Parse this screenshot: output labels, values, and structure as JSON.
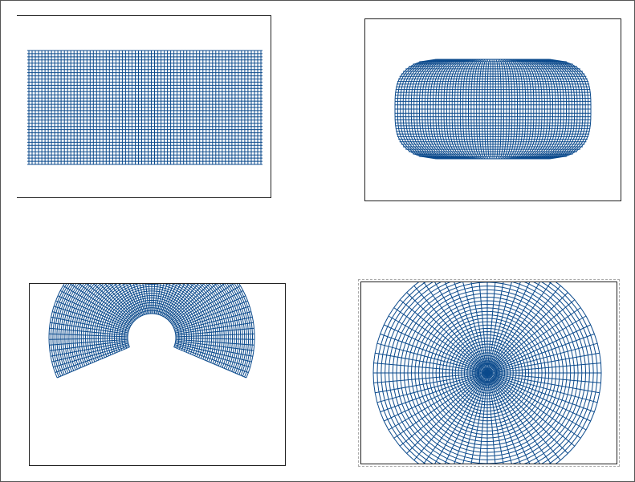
{
  "colors": {
    "grid": "#0b4a8c",
    "frame": "#222222",
    "selection": "#a9a9a9"
  },
  "panels": [
    {
      "id": "p1",
      "name": "plate-carree-grid-panel",
      "selected": false
    },
    {
      "id": "p2",
      "name": "pseudocylindrical-grid-panel",
      "selected": false
    },
    {
      "id": "p3",
      "name": "conic-fan-grid-panel",
      "selected": false
    },
    {
      "id": "p4",
      "name": "azimuthal-grid-panel",
      "selected": true
    }
  ]
}
